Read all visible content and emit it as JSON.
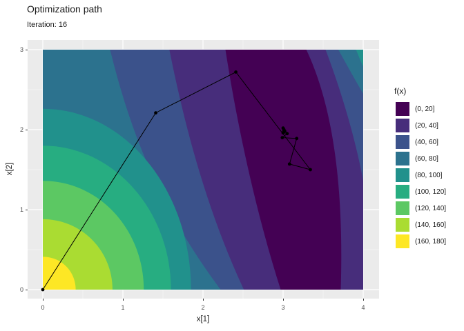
{
  "title": "Optimization path",
  "subtitle": "Iteration: 16",
  "axes": {
    "x": {
      "label": "x[1]",
      "range": [
        0,
        4
      ],
      "ticks": [
        0,
        1,
        2,
        3,
        4
      ],
      "minor_ticks": [
        0.5,
        1.5,
        2.5,
        3.5
      ]
    },
    "y": {
      "label": "x[2]",
      "range": [
        0,
        3
      ],
      "ticks": [
        0,
        1,
        2,
        3
      ],
      "minor_ticks": [
        0.5,
        1.5,
        2.5
      ]
    }
  },
  "panel": {
    "bg": "#ebebeb",
    "grid_major": "#ffffff",
    "grid_minor": "#ffffff",
    "grid_minor_opacity": 0.55
  },
  "legend": {
    "title": "f(x)",
    "position": "right",
    "entries": [
      {
        "label": "(0, 20]",
        "color": "#440154"
      },
      {
        "label": "(20, 40]",
        "color": "#472d7b"
      },
      {
        "label": "(40, 60]",
        "color": "#3b528b"
      },
      {
        "label": "(60, 80]",
        "color": "#2c728e"
      },
      {
        "label": "(80, 100]",
        "color": "#21918c"
      },
      {
        "label": "(100, 120]",
        "color": "#27ad81"
      },
      {
        "label": "(120, 140]",
        "color": "#5cc863"
      },
      {
        "label": "(140, 160]",
        "color": "#aadc32"
      },
      {
        "label": "(160, 180]",
        "color": "#fde725"
      }
    ]
  },
  "chart_data": {
    "type": "filled-contour-with-path",
    "title": "Optimization path",
    "subtitle": "Iteration: 16",
    "xlabel": "x[1]",
    "ylabel": "x[2]",
    "xlim": [
      0,
      4
    ],
    "ylim": [
      0,
      3
    ],
    "grid": "major-and-minor",
    "legend_position": "right",
    "fill_variable": "f(x)",
    "fill_bins": [
      {
        "range": [
          0,
          20
        ],
        "color": "#440154"
      },
      {
        "range": [
          20,
          40
        ],
        "color": "#472d7b"
      },
      {
        "range": [
          40,
          60
        ],
        "color": "#3b528b"
      },
      {
        "range": [
          60,
          80
        ],
        "color": "#2c728e"
      },
      {
        "range": [
          80,
          100
        ],
        "color": "#21918c"
      },
      {
        "range": [
          100,
          120
        ],
        "color": "#27ad81"
      },
      {
        "range": [
          120,
          140
        ],
        "color": "#5cc863"
      },
      {
        "range": [
          140,
          160
        ],
        "color": "#aadc32"
      },
      {
        "range": [
          160,
          180
        ],
        "color": "#fde725"
      }
    ],
    "optimization_path": {
      "iteration": 16,
      "color": "#000000",
      "points": [
        [
          0.0,
          0.0
        ],
        [
          1.41,
          2.21
        ],
        [
          2.41,
          2.72
        ],
        [
          3.34,
          1.5
        ],
        [
          3.08,
          1.57
        ],
        [
          3.17,
          1.89
        ],
        [
          2.99,
          1.9
        ],
        [
          3.05,
          1.95
        ],
        [
          3.0,
          2.02
        ],
        [
          3.02,
          1.98
        ],
        [
          3.0,
          1.96
        ],
        [
          3.01,
          2.0
        ],
        [
          3.01,
          1.97
        ],
        [
          3.02,
          1.98
        ],
        [
          3.01,
          1.98
        ],
        [
          3.015,
          1.985
        ],
        [
          3.012,
          1.98
        ]
      ]
    },
    "contour_regions": {
      "base_color": "#472d7b",
      "regions": [
        {
          "level": "(40,60] left",
          "color": "#3b528b",
          "path": [
            [
              "M",
              1.58,
              3
            ],
            [
              "C",
              1.75,
              2.15,
              2.02,
              1.05,
              2.51,
              0
            ],
            [
              "L",
              0,
              0
            ],
            [
              "L",
              0,
              3
            ],
            [
              "Z"
            ]
          ]
        },
        {
          "level": "(60,80] left",
          "color": "#2c728e",
          "path": [
            [
              "M",
              0.84,
              3
            ],
            [
              "C",
              1.04,
              2.2,
              1.36,
              1.15,
              2.22,
              0
            ],
            [
              "L",
              0,
              0
            ],
            [
              "L",
              0,
              3
            ],
            [
              "Z"
            ]
          ]
        },
        {
          "level": "(80,100]",
          "color": "#21918c",
          "path": [
            [
              "M",
              0,
              2.26
            ],
            [
              "C",
              1.02,
              2.26,
              1.85,
              1.25,
              1.85,
              0
            ],
            [
              "L",
              0,
              0
            ],
            [
              "Z"
            ]
          ]
        },
        {
          "level": "(100,120]",
          "color": "#27ad81",
          "path": [
            [
              "M",
              0,
              1.8
            ],
            [
              "C",
              0.88,
              1.8,
              1.6,
              0.99,
              1.6,
              0
            ],
            [
              "L",
              0,
              0
            ],
            [
              "Z"
            ]
          ]
        },
        {
          "level": "(120,140]",
          "color": "#5cc863",
          "path": [
            [
              "M",
              0,
              1.36
            ],
            [
              "C",
              0.7,
              1.36,
              1.26,
              0.75,
              1.26,
              0
            ],
            [
              "L",
              0,
              0
            ],
            [
              "Z"
            ]
          ]
        },
        {
          "level": "(140,160]",
          "color": "#aadc32",
          "path": [
            [
              "M",
              0,
              0.88
            ],
            [
              "C",
              0.48,
              0.88,
              0.87,
              0.49,
              0.87,
              0
            ],
            [
              "L",
              0,
              0
            ],
            [
              "Z"
            ]
          ]
        },
        {
          "level": "(160,180]",
          "color": "#fde725",
          "path": [
            [
              "M",
              0,
              0.41
            ],
            [
              "C",
              0.23,
              0.41,
              0.41,
              0.23,
              0.41,
              0
            ],
            [
              "L",
              0,
              0
            ],
            [
              "Z"
            ]
          ]
        },
        {
          "level": "(0,20] minimum",
          "color": "#440154",
          "path": [
            [
              "M",
              2.28,
              3
            ],
            [
              "C",
              2.42,
              2.1,
              2.65,
              1.0,
              2.97,
              0
            ],
            [
              "L",
              3.72,
              0
            ],
            [
              "C",
              3.76,
              1.3,
              3.62,
              2.3,
              3.29,
              3
            ],
            [
              "Z"
            ]
          ]
        },
        {
          "level": "(40,60] right",
          "color": "#3b528b",
          "path": [
            [
              "M",
              3.53,
              3
            ],
            [
              "C",
              3.72,
              2.5,
              3.9,
              1.9,
              4,
              1.36
            ],
            [
              "L",
              4,
              3
            ],
            [
              "Z"
            ]
          ]
        },
        {
          "level": "(60,80] right",
          "color": "#2c728e",
          "path": [
            [
              "M",
              3.69,
              3
            ],
            [
              "C",
              3.8,
              2.8,
              3.91,
              2.6,
              4,
              2.45
            ],
            [
              "L",
              4,
              3
            ],
            [
              "Z"
            ]
          ]
        },
        {
          "level": "(80,100] right",
          "color": "#21918c",
          "path": [
            [
              "M",
              3.91,
              3
            ],
            [
              "C",
              3.94,
              2.93,
              3.97,
              2.85,
              4,
              2.79
            ],
            [
              "L",
              4,
              3
            ],
            [
              "Z"
            ]
          ]
        }
      ]
    }
  }
}
